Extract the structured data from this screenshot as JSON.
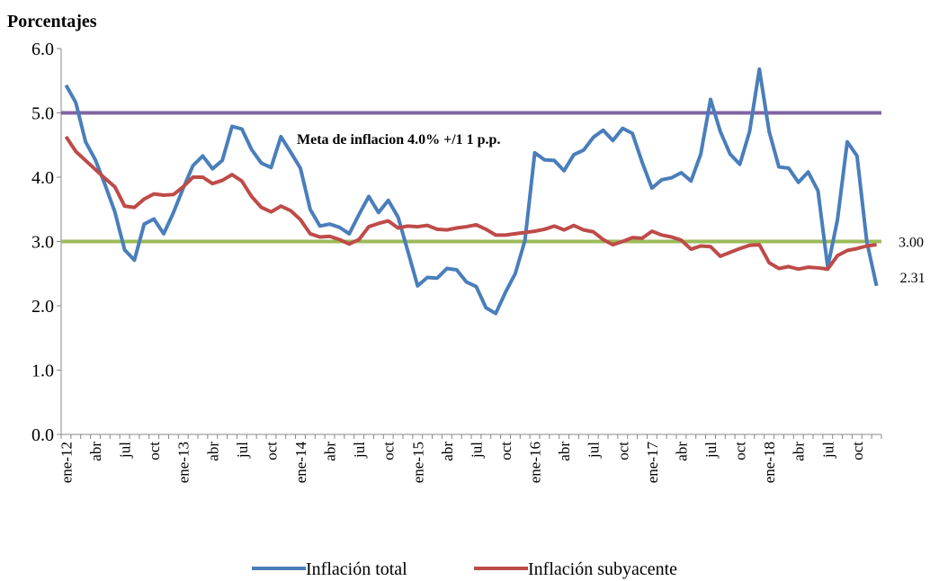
{
  "chart_data": {
    "type": "line",
    "y_label": "Porcentajes",
    "annotation": "Meta de inflacion 4.0% +/1 1 p.p.",
    "categories": [
      "ene-12",
      null,
      null,
      "abr",
      null,
      null,
      "jul",
      null,
      null,
      "oct",
      null,
      null,
      "ene-13",
      null,
      null,
      "abr",
      null,
      null,
      "jul",
      null,
      null,
      "oct",
      null,
      null,
      "ene-14",
      null,
      null,
      "abr",
      null,
      null,
      "jul",
      null,
      null,
      "oct",
      null,
      null,
      "ene-15",
      null,
      null,
      "abr",
      null,
      null,
      "jul",
      null,
      null,
      "oct",
      null,
      null,
      "ene-16",
      null,
      null,
      "abr",
      null,
      null,
      "jul",
      null,
      null,
      "oct",
      null,
      null,
      "ene-17",
      null,
      null,
      "abr",
      null,
      null,
      "jul",
      null,
      null,
      "oct",
      null,
      null,
      "ene-18",
      null,
      null,
      "abr",
      null,
      null,
      "jul",
      null,
      null,
      "oct",
      null,
      null
    ],
    "series": [
      {
        "name": "Inflación total",
        "color": "#4a7ebb",
        "values": [
          5.43,
          5.16,
          4.55,
          4.27,
          3.88,
          3.46,
          2.87,
          2.71,
          3.27,
          3.35,
          3.12,
          3.45,
          3.83,
          4.18,
          4.33,
          4.13,
          4.26,
          4.79,
          4.75,
          4.43,
          4.22,
          4.15,
          4.63,
          4.39,
          4.14,
          3.5,
          3.24,
          3.27,
          3.22,
          3.12,
          3.42,
          3.7,
          3.45,
          3.64,
          3.38,
          2.85,
          2.31,
          2.44,
          2.43,
          2.58,
          2.56,
          2.37,
          2.3,
          1.97,
          1.88,
          2.21,
          2.5,
          3.02,
          4.38,
          4.27,
          4.26,
          4.1,
          4.35,
          4.42,
          4.62,
          4.73,
          4.57,
          4.76,
          4.68,
          4.23,
          3.83,
          3.96,
          3.99,
          4.07,
          3.94,
          4.36,
          5.21,
          4.71,
          4.36,
          4.2,
          4.71,
          5.68,
          4.71,
          4.16,
          4.14,
          3.92,
          4.08,
          3.79,
          2.6,
          3.34,
          4.55,
          4.33,
          3.0,
          2.31
        ],
        "value_labels": [
          null,
          null,
          null,
          null,
          null,
          null,
          null,
          null,
          null,
          null,
          null,
          null,
          null,
          null,
          null,
          null,
          null,
          null,
          null,
          null,
          null,
          null,
          null,
          null,
          null,
          null,
          null,
          null,
          null,
          null,
          null,
          null,
          null,
          null,
          null,
          null,
          null,
          null,
          null,
          null,
          null,
          null,
          null,
          null,
          null,
          null,
          null,
          null,
          null,
          null,
          null,
          null,
          null,
          null,
          null,
          null,
          null,
          null,
          null,
          null,
          null,
          null,
          null,
          null,
          null,
          null,
          null,
          null,
          null,
          null,
          null,
          null,
          null,
          null,
          null,
          null,
          null,
          null,
          null,
          null,
          null,
          null,
          null,
          "2.31"
        ]
      },
      {
        "name": "Inflación subyacente",
        "color": "#be4b48",
        "values": [
          4.63,
          4.4,
          4.26,
          4.12,
          3.98,
          3.85,
          3.55,
          3.53,
          3.66,
          3.74,
          3.72,
          3.73,
          3.85,
          4.0,
          4.0,
          3.9,
          3.95,
          4.04,
          3.94,
          3.7,
          3.53,
          3.46,
          3.55,
          3.48,
          3.34,
          3.12,
          3.07,
          3.08,
          3.03,
          2.96,
          3.03,
          3.23,
          3.28,
          3.32,
          3.21,
          3.24,
          3.23,
          3.25,
          3.19,
          3.18,
          3.21,
          3.23,
          3.26,
          3.19,
          3.1,
          3.1,
          3.12,
          3.14,
          3.16,
          3.19,
          3.24,
          3.18,
          3.25,
          3.18,
          3.15,
          3.03,
          2.95,
          3.0,
          3.06,
          3.05,
          3.16,
          3.1,
          3.07,
          3.02,
          2.88,
          2.93,
          2.92,
          2.77,
          2.83,
          2.89,
          2.94,
          2.95,
          2.67,
          2.58,
          2.61,
          2.57,
          2.6,
          2.59,
          2.57,
          2.78,
          2.86,
          2.89,
          2.93,
          2.95
        ]
      }
    ],
    "reference_lines": [
      {
        "value": 5,
        "color": "#8064a2"
      },
      {
        "value": 3,
        "color": "#9bbb59",
        "label": "3.00"
      }
    ],
    "ylim": [
      0,
      6
    ],
    "yticks": [
      {
        "value": 0,
        "label": "0.0"
      },
      {
        "value": 1,
        "label": "1.0"
      },
      {
        "value": 2,
        "label": "2.0"
      },
      {
        "value": 3,
        "label": "3.0"
      },
      {
        "value": 4,
        "label": "4.0"
      },
      {
        "value": 5,
        "label": "5.0"
      },
      {
        "value": 6,
        "label": "6.0"
      }
    ],
    "grid": false,
    "legend": "bottom"
  }
}
